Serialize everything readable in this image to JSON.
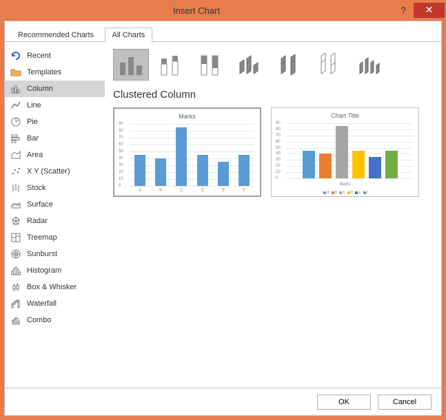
{
  "window": {
    "title": "Insert Chart"
  },
  "tabs": {
    "recommended": "Recommended Charts",
    "all": "All Charts",
    "active": "all"
  },
  "sidebar": {
    "items": [
      {
        "label": "Recent",
        "icon": "undo-icon",
        "color": "#2a6bcc"
      },
      {
        "label": "Templates",
        "icon": "folder-icon",
        "color": "#eab261"
      },
      {
        "label": "Column",
        "icon": "column-icon",
        "color": "#7a7a7a",
        "selected": true
      },
      {
        "label": "Line",
        "icon": "line-icon",
        "color": "#7a7a7a"
      },
      {
        "label": "Pie",
        "icon": "pie-icon",
        "color": "#7a7a7a"
      },
      {
        "label": "Bar",
        "icon": "bar-icon",
        "color": "#7a7a7a"
      },
      {
        "label": "Area",
        "icon": "area-icon",
        "color": "#7a7a7a"
      },
      {
        "label": "X Y (Scatter)",
        "icon": "scatter-icon",
        "color": "#7a7a7a"
      },
      {
        "label": "Stock",
        "icon": "stock-icon",
        "color": "#7a7a7a"
      },
      {
        "label": "Surface",
        "icon": "surface-icon",
        "color": "#7a7a7a"
      },
      {
        "label": "Radar",
        "icon": "radar-icon",
        "color": "#7a7a7a"
      },
      {
        "label": "Treemap",
        "icon": "treemap-icon",
        "color": "#7a7a7a"
      },
      {
        "label": "Sunburst",
        "icon": "sunburst-icon",
        "color": "#7a7a7a"
      },
      {
        "label": "Histogram",
        "icon": "histogram-icon",
        "color": "#7a7a7a"
      },
      {
        "label": "Box & Whisker",
        "icon": "boxplot-icon",
        "color": "#7a7a7a"
      },
      {
        "label": "Waterfall",
        "icon": "waterfall-icon",
        "color": "#7a7a7a"
      },
      {
        "label": "Combo",
        "icon": "combo-icon",
        "color": "#7a7a7a"
      }
    ]
  },
  "subtypes": {
    "selected": 0,
    "title": "Clustered Column",
    "items": [
      "clustered-column",
      "stacked-column",
      "100-stacked-column",
      "3d-clustered-column",
      "3d-stacked-column",
      "3d-100-stacked-column",
      "3d-column"
    ]
  },
  "preview1": {
    "type": "bar",
    "title": "Marks",
    "categories": [
      "A",
      "B",
      "C",
      "D",
      "E",
      "F"
    ],
    "values": [
      45,
      40,
      85,
      45,
      35,
      45
    ],
    "bar_color": "#5b9bd5",
    "ylim": [
      0,
      90
    ],
    "ytick_step": 10,
    "grid_color": "#e8e8e8",
    "background_color": "#ffffff",
    "title_fontsize": 9,
    "label_fontsize": 6
  },
  "preview2": {
    "type": "bar",
    "title": "Chart Title",
    "axis_label": "Marks",
    "categories": [
      "A",
      "B",
      "C",
      "D",
      "E",
      "F"
    ],
    "values": [
      45,
      40,
      85,
      45,
      35,
      45
    ],
    "bar_colors": [
      "#5b9bd5",
      "#ed7d31",
      "#a5a5a5",
      "#ffc000",
      "#4472c4",
      "#70ad47"
    ],
    "ylim": [
      0,
      90
    ],
    "ytick_step": 10,
    "grid_color": "#e8e8e8",
    "background_color": "#ffffff",
    "legend_prefix": ""
  },
  "buttons": {
    "ok": "OK",
    "cancel": "Cancel"
  }
}
